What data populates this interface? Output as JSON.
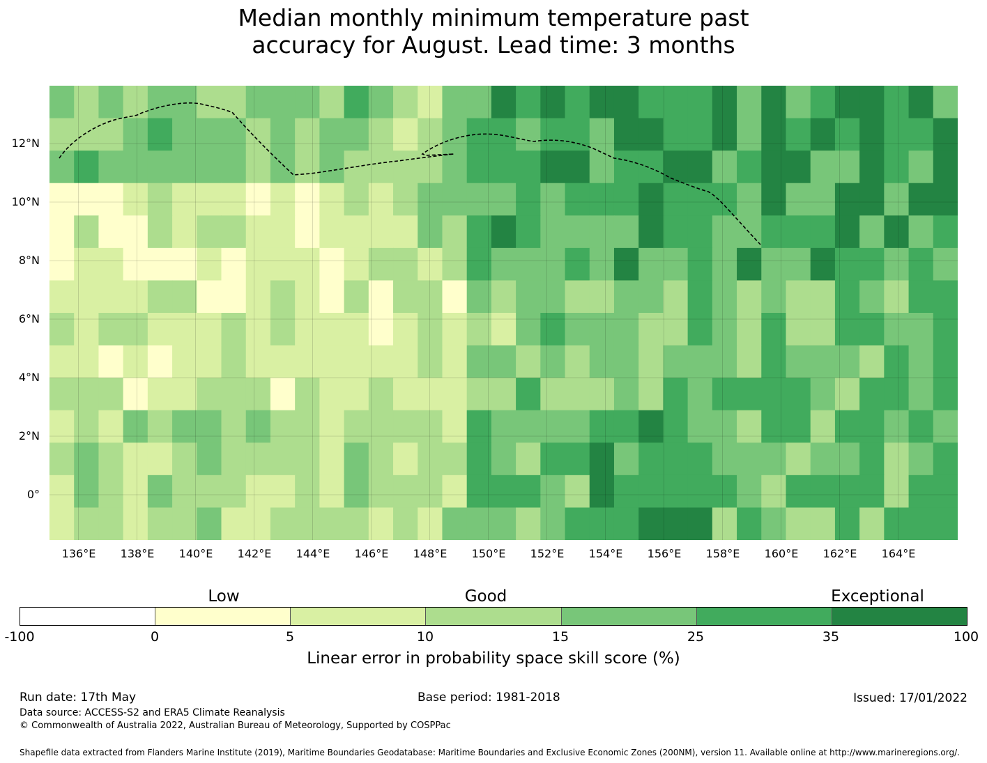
{
  "title": {
    "line1": "Median monthly minimum temperature past",
    "line2": "accuracy for August. Lead time: 3 months"
  },
  "map": {
    "lat_labels": [
      "12°N",
      "10°N",
      "8°N",
      "6°N",
      "4°N",
      "2°N",
      "0°"
    ],
    "lon_labels": [
      "136°E",
      "138°E",
      "140°E",
      "142°E",
      "144°E",
      "146°E",
      "148°E",
      "150°E",
      "152°E",
      "154°E",
      "156°E",
      "158°E",
      "160°E",
      "162°E",
      "164°E"
    ]
  },
  "legend": {
    "category_low": "Low",
    "category_good": "Good",
    "category_exceptional": "Exceptional",
    "ticks": [
      "-100",
      "0",
      "5",
      "10",
      "15",
      "25",
      "35",
      "100"
    ],
    "colors": [
      "#ffffff",
      "#ffffcc",
      "#d9f0a3",
      "#addd8e",
      "#78c679",
      "#41ab5d",
      "#238443"
    ],
    "label": "Linear error in probability space skill score (%)"
  },
  "footer": {
    "run_date": "Run date: 17th May",
    "base_period": "Base period: 1981-2018",
    "issued": "Issued: 17/01/2022",
    "data_source": "Data source: ACCESS-S2 and ERA5 Climate Reanalysis",
    "copyright": "© Commonwealth of Australia 2022, Australian Bureau of Meteorology, Supported by COSPPac",
    "shapefile": "Shapefile data extracted from Flanders Marine Institute (2019), Maritime Boundaries Geodatabase: Maritime Boundaries and Exclusive Economic Zones (200NM), version 11. Available online at http://www.marineregions.org/."
  }
}
